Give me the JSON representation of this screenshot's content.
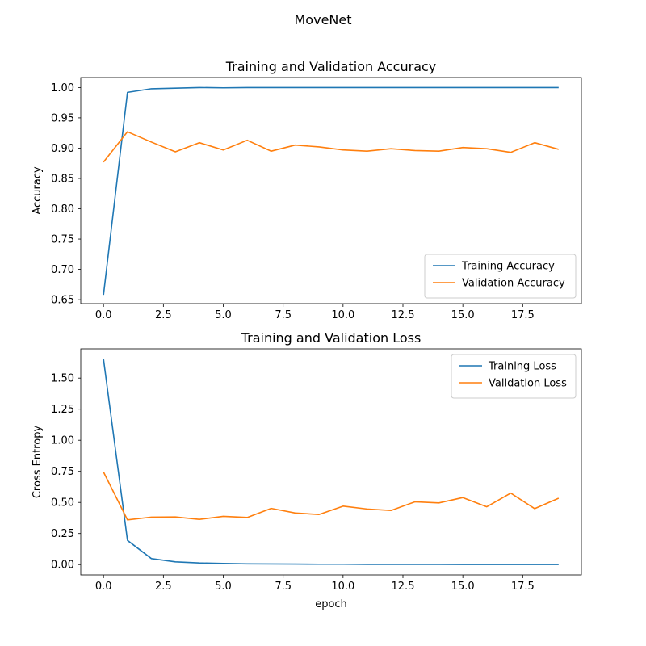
{
  "figure": {
    "title": "MoveNet"
  },
  "chart_data": [
    {
      "type": "line",
      "title": "Training and Validation Accuracy",
      "xlabel": "",
      "ylabel": "Accuracy",
      "xlim": [
        -0.95,
        19.95
      ],
      "ylim": [
        0.6435,
        1.0165
      ],
      "xticks": [
        0,
        2.5,
        5,
        7.5,
        10,
        12.5,
        15,
        17.5
      ],
      "xtick_labels": [
        "0.0",
        "2.5",
        "5.0",
        "7.5",
        "10.0",
        "12.5",
        "15.0",
        "17.5"
      ],
      "yticks": [
        0.65,
        0.7,
        0.75,
        0.8,
        0.85,
        0.9,
        0.95,
        1.0
      ],
      "ytick_labels": [
        "0.65",
        "0.70",
        "0.75",
        "0.80",
        "0.85",
        "0.90",
        "0.95",
        "1.00"
      ],
      "grid": false,
      "legend": "lower right",
      "x": [
        0,
        1,
        2,
        3,
        4,
        5,
        6,
        7,
        8,
        9,
        10,
        11,
        12,
        13,
        14,
        15,
        16,
        17,
        18,
        19
      ],
      "series": [
        {
          "name": "Training Accuracy",
          "color": "#1f77b4",
          "values": [
            0.658,
            0.992,
            0.998,
            0.999,
            1.0,
            0.9995,
            1.0,
            1.0,
            1.0,
            1.0,
            1.0,
            1.0,
            1.0,
            1.0,
            1.0,
            1.0,
            1.0,
            1.0,
            1.0,
            1.0
          ]
        },
        {
          "name": "Validation Accuracy",
          "color": "#ff7f0e",
          "values": [
            0.877,
            0.927,
            0.91,
            0.894,
            0.909,
            0.897,
            0.913,
            0.895,
            0.905,
            0.902,
            0.897,
            0.895,
            0.899,
            0.896,
            0.895,
            0.901,
            0.899,
            0.893,
            0.909,
            0.898
          ]
        }
      ]
    },
    {
      "type": "line",
      "title": "Training and Validation Loss",
      "xlabel": "epoch",
      "ylabel": "Cross Entropy",
      "xlim": [
        -0.95,
        19.95
      ],
      "ylim": [
        -0.083,
        1.735
      ],
      "xticks": [
        0,
        2.5,
        5,
        7.5,
        10,
        12.5,
        15,
        17.5
      ],
      "xtick_labels": [
        "0.0",
        "2.5",
        "5.0",
        "7.5",
        "10.0",
        "12.5",
        "15.0",
        "17.5"
      ],
      "yticks": [
        0.0,
        0.25,
        0.5,
        0.75,
        1.0,
        1.25,
        1.5
      ],
      "ytick_labels": [
        "0.00",
        "0.25",
        "0.50",
        "0.75",
        "1.00",
        "1.25",
        "1.50"
      ],
      "grid": false,
      "legend": "upper right",
      "x": [
        0,
        1,
        2,
        3,
        4,
        5,
        6,
        7,
        8,
        9,
        10,
        11,
        12,
        13,
        14,
        15,
        16,
        17,
        18,
        19
      ],
      "series": [
        {
          "name": "Training Loss",
          "color": "#1f77b4",
          "values": [
            1.652,
            0.195,
            0.048,
            0.022,
            0.013,
            0.009,
            0.006,
            0.005,
            0.004,
            0.003,
            0.003,
            0.002,
            0.002,
            0.002,
            0.002,
            0.001,
            0.001,
            0.001,
            0.001,
            0.001
          ]
        },
        {
          "name": "Validation Loss",
          "color": "#ff7f0e",
          "values": [
            0.745,
            0.36,
            0.382,
            0.383,
            0.364,
            0.388,
            0.379,
            0.452,
            0.415,
            0.403,
            0.47,
            0.447,
            0.435,
            0.505,
            0.496,
            0.539,
            0.465,
            0.575,
            0.45,
            0.534
          ]
        }
      ]
    }
  ]
}
